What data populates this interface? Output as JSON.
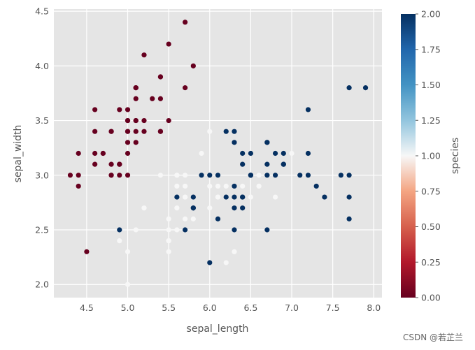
{
  "chart_data": {
    "type": "scatter",
    "xlabel": "sepal_length",
    "ylabel": "sepal_width",
    "xlim": [
      4.1,
      8.1
    ],
    "ylim": [
      1.88,
      4.52
    ],
    "xticks": [
      "4.5",
      "5.0",
      "5.5",
      "6.0",
      "6.5",
      "7.0",
      "7.5",
      "8.0"
    ],
    "yticks": [
      "2.0",
      "2.5",
      "3.0",
      "3.5",
      "4.0",
      "4.5"
    ],
    "grid": true,
    "colorbar": {
      "label": "species",
      "cmap": "RdBu",
      "range": [
        0,
        2
      ],
      "ticks": [
        "0.00",
        "0.25",
        "0.50",
        "0.75",
        "1.00",
        "1.25",
        "1.50",
        "1.75",
        "2.00"
      ]
    },
    "points": [
      [
        5.1,
        3.5,
        0
      ],
      [
        4.9,
        3.0,
        0
      ],
      [
        4.7,
        3.2,
        0
      ],
      [
        4.6,
        3.1,
        0
      ],
      [
        5.0,
        3.6,
        0
      ],
      [
        5.4,
        3.9,
        0
      ],
      [
        4.6,
        3.4,
        0
      ],
      [
        5.0,
        3.4,
        0
      ],
      [
        4.4,
        2.9,
        0
      ],
      [
        4.9,
        3.1,
        0
      ],
      [
        5.4,
        3.7,
        0
      ],
      [
        4.8,
        3.4,
        0
      ],
      [
        4.8,
        3.0,
        0
      ],
      [
        4.3,
        3.0,
        0
      ],
      [
        5.8,
        4.0,
        0
      ],
      [
        5.7,
        4.4,
        0
      ],
      [
        5.4,
        3.9,
        0
      ],
      [
        5.1,
        3.5,
        0
      ],
      [
        5.7,
        3.8,
        0
      ],
      [
        5.1,
        3.8,
        0
      ],
      [
        5.4,
        3.4,
        0
      ],
      [
        5.1,
        3.7,
        0
      ],
      [
        4.6,
        3.6,
        0
      ],
      [
        5.1,
        3.3,
        0
      ],
      [
        4.8,
        3.4,
        0
      ],
      [
        5.0,
        3.0,
        0
      ],
      [
        5.0,
        3.4,
        0
      ],
      [
        5.2,
        3.5,
        0
      ],
      [
        5.2,
        3.4,
        0
      ],
      [
        4.7,
        3.2,
        0
      ],
      [
        4.8,
        3.1,
        0
      ],
      [
        5.4,
        3.4,
        0
      ],
      [
        5.2,
        4.1,
        0
      ],
      [
        5.5,
        4.2,
        0
      ],
      [
        4.9,
        3.1,
        0
      ],
      [
        5.0,
        3.2,
        0
      ],
      [
        5.5,
        3.5,
        0
      ],
      [
        4.9,
        3.6,
        0
      ],
      [
        4.4,
        3.0,
        0
      ],
      [
        5.1,
        3.4,
        0
      ],
      [
        5.0,
        3.5,
        0
      ],
      [
        4.5,
        2.3,
        0
      ],
      [
        4.4,
        3.2,
        0
      ],
      [
        5.0,
        3.5,
        0
      ],
      [
        5.1,
        3.8,
        0
      ],
      [
        4.8,
        3.0,
        0
      ],
      [
        5.1,
        3.8,
        0
      ],
      [
        4.6,
        3.2,
        0
      ],
      [
        5.3,
        3.7,
        0
      ],
      [
        5.0,
        3.3,
        0
      ],
      [
        7.0,
        3.2,
        1
      ],
      [
        6.4,
        3.2,
        1
      ],
      [
        6.9,
        3.1,
        1
      ],
      [
        5.5,
        2.3,
        1
      ],
      [
        6.5,
        2.8,
        1
      ],
      [
        5.7,
        2.8,
        1
      ],
      [
        6.3,
        3.3,
        1
      ],
      [
        4.9,
        2.4,
        1
      ],
      [
        6.6,
        2.9,
        1
      ],
      [
        5.2,
        2.7,
        1
      ],
      [
        5.0,
        2.0,
        1
      ],
      [
        5.9,
        3.0,
        1
      ],
      [
        6.0,
        2.2,
        1
      ],
      [
        6.1,
        2.9,
        1
      ],
      [
        5.6,
        2.9,
        1
      ],
      [
        6.7,
        3.1,
        1
      ],
      [
        5.6,
        3.0,
        1
      ],
      [
        5.8,
        2.7,
        1
      ],
      [
        6.2,
        2.2,
        1
      ],
      [
        5.6,
        2.5,
        1
      ],
      [
        5.9,
        3.2,
        1
      ],
      [
        6.1,
        2.8,
        1
      ],
      [
        6.3,
        2.5,
        1
      ],
      [
        6.1,
        2.8,
        1
      ],
      [
        6.4,
        2.9,
        1
      ],
      [
        6.6,
        3.0,
        1
      ],
      [
        6.8,
        2.8,
        1
      ],
      [
        6.7,
        3.0,
        1
      ],
      [
        6.0,
        2.9,
        1
      ],
      [
        5.7,
        2.6,
        1
      ],
      [
        5.5,
        2.4,
        1
      ],
      [
        5.5,
        2.4,
        1
      ],
      [
        5.8,
        2.7,
        1
      ],
      [
        6.0,
        2.7,
        1
      ],
      [
        5.4,
        3.0,
        1
      ],
      [
        6.0,
        3.4,
        1
      ],
      [
        6.7,
        3.1,
        1
      ],
      [
        6.3,
        2.3,
        1
      ],
      [
        5.6,
        3.0,
        1
      ],
      [
        5.5,
        2.5,
        1
      ],
      [
        5.5,
        2.6,
        1
      ],
      [
        6.1,
        3.0,
        1
      ],
      [
        5.8,
        2.6,
        1
      ],
      [
        5.0,
        2.3,
        1
      ],
      [
        5.6,
        2.7,
        1
      ],
      [
        5.7,
        3.0,
        1
      ],
      [
        5.7,
        2.9,
        1
      ],
      [
        6.2,
        2.9,
        1
      ],
      [
        5.1,
        2.5,
        1
      ],
      [
        5.7,
        2.8,
        1
      ],
      [
        6.3,
        3.3,
        2
      ],
      [
        5.8,
        2.7,
        2
      ],
      [
        7.1,
        3.0,
        2
      ],
      [
        6.3,
        2.9,
        2
      ],
      [
        6.5,
        3.0,
        2
      ],
      [
        7.6,
        3.0,
        2
      ],
      [
        4.9,
        2.5,
        2
      ],
      [
        7.3,
        2.9,
        2
      ],
      [
        6.7,
        2.5,
        2
      ],
      [
        7.2,
        3.6,
        2
      ],
      [
        6.5,
        3.2,
        2
      ],
      [
        6.4,
        2.7,
        2
      ],
      [
        6.8,
        3.0,
        2
      ],
      [
        5.7,
        2.5,
        2
      ],
      [
        5.8,
        2.8,
        2
      ],
      [
        6.4,
        3.2,
        2
      ],
      [
        6.5,
        3.0,
        2
      ],
      [
        7.7,
        3.8,
        2
      ],
      [
        7.7,
        2.6,
        2
      ],
      [
        6.0,
        2.2,
        2
      ],
      [
        6.9,
        3.2,
        2
      ],
      [
        5.6,
        2.8,
        2
      ],
      [
        7.7,
        2.8,
        2
      ],
      [
        6.3,
        2.7,
        2
      ],
      [
        6.7,
        3.3,
        2
      ],
      [
        7.2,
        3.2,
        2
      ],
      [
        6.2,
        2.8,
        2
      ],
      [
        6.1,
        3.0,
        2
      ],
      [
        6.4,
        2.8,
        2
      ],
      [
        7.2,
        3.0,
        2
      ],
      [
        7.4,
        2.8,
        2
      ],
      [
        7.9,
        3.8,
        2
      ],
      [
        6.4,
        2.8,
        2
      ],
      [
        6.3,
        2.8,
        2
      ],
      [
        6.1,
        2.6,
        2
      ],
      [
        7.7,
        3.0,
        2
      ],
      [
        6.3,
        3.4,
        2
      ],
      [
        6.4,
        3.1,
        2
      ],
      [
        6.0,
        3.0,
        2
      ],
      [
        6.9,
        3.1,
        2
      ],
      [
        6.7,
        3.1,
        2
      ],
      [
        6.9,
        3.1,
        2
      ],
      [
        5.8,
        2.7,
        2
      ],
      [
        6.8,
        3.2,
        2
      ],
      [
        6.7,
        3.3,
        2
      ],
      [
        6.7,
        3.0,
        2
      ],
      [
        6.3,
        2.5,
        2
      ],
      [
        6.5,
        3.0,
        2
      ],
      [
        6.2,
        3.4,
        2
      ],
      [
        5.9,
        3.0,
        2
      ]
    ]
  },
  "colors": {
    "plot_bg": "#e5e5e5",
    "grid": "#ffffff",
    "class_0": "#67001f",
    "class_1": "#f7f7f7",
    "class_2": "#053061"
  },
  "watermark": "CSDN @若芷兰"
}
